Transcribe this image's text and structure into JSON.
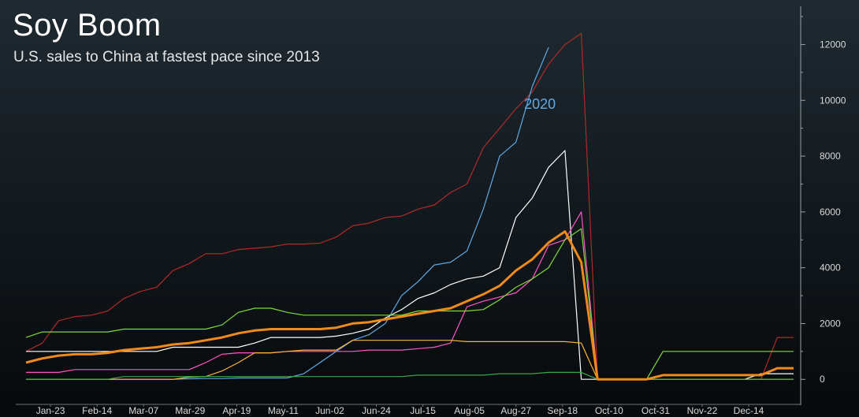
{
  "header": {
    "title": "Soy Boom",
    "subtitle": "U.S. sales to China at fastest pace since 2013"
  },
  "chart_data": {
    "type": "line",
    "title": "Soy Boom",
    "subtitle": "U.S. sales to China at fastest pace since 2013",
    "xlabel": "",
    "ylabel": "",
    "x_ticks": [
      "Jan-23",
      "Feb-14",
      "Mar-07",
      "Mar-29",
      "Apr-19",
      "May-11",
      "Jun-02",
      "Jun-24",
      "Jul-15",
      "Aug-05",
      "Aug-27",
      "Sep-18",
      "Oct-10",
      "Oct-31",
      "Nov-22",
      "Dec-14"
    ],
    "x_range": [
      0,
      47
    ],
    "ylim": [
      -700,
      13200
    ],
    "y_ticks": [
      0,
      2000,
      4000,
      6000,
      8000,
      10000,
      12000
    ],
    "y_axis_side": "right",
    "grid": false,
    "legend": "none",
    "annotations": [
      {
        "text": "2020",
        "x": 30.5,
        "y": 9700,
        "color": "#5ea9e6"
      }
    ],
    "series": [
      {
        "color": "#b02a2a",
        "width": 1.2,
        "x": [
          0,
          1,
          2,
          3,
          4,
          5,
          6,
          7,
          8,
          9,
          10,
          11,
          12,
          13,
          14,
          15,
          16,
          17,
          18,
          19,
          20,
          21,
          22,
          23,
          24,
          25,
          26,
          27,
          28,
          29,
          30,
          31,
          32,
          33,
          34,
          35,
          36,
          37,
          38,
          39,
          40,
          41,
          42,
          43,
          44,
          45,
          46,
          47
        ],
        "y": [
          1000,
          1300,
          2100,
          2250,
          2300,
          2450,
          2900,
          3150,
          3300,
          3900,
          4150,
          4500,
          4500,
          4650,
          4700,
          4750,
          4850,
          4850,
          4880,
          5100,
          5500,
          5600,
          5800,
          5850,
          6100,
          6250,
          6700,
          7000,
          8300,
          9000,
          9700,
          10300,
          11300,
          12000,
          12400,
          0,
          0,
          0,
          0,
          0,
          0,
          0,
          0,
          0,
          0,
          0,
          1500,
          1500
        ]
      },
      {
        "color": "#5ea9e6",
        "width": 1.2,
        "x": [
          0,
          1,
          2,
          3,
          4,
          5,
          6,
          7,
          8,
          9,
          10,
          11,
          12,
          13,
          14,
          15,
          16,
          17,
          18,
          19,
          20,
          21,
          22,
          23,
          24,
          25,
          26,
          27,
          28,
          29,
          30,
          31,
          32
        ],
        "y": [
          0,
          0,
          0,
          0,
          0,
          0,
          0,
          0,
          0,
          0,
          20,
          30,
          30,
          50,
          50,
          50,
          50,
          200,
          600,
          1000,
          1400,
          1600,
          2000,
          3000,
          3500,
          4100,
          4200,
          4600,
          6100,
          8000,
          8500,
          10500,
          11900
        ]
      },
      {
        "color": "#ffffff",
        "width": 1.2,
        "x": [
          0,
          1,
          2,
          3,
          4,
          5,
          6,
          7,
          8,
          9,
          10,
          11,
          12,
          13,
          14,
          15,
          16,
          17,
          18,
          19,
          20,
          21,
          22,
          23,
          24,
          25,
          26,
          27,
          28,
          29,
          30,
          31,
          32,
          33,
          34,
          35,
          36,
          37,
          38,
          39,
          40,
          41,
          42,
          43,
          44,
          45,
          46,
          47
        ],
        "y": [
          1000,
          1000,
          1000,
          1000,
          1000,
          1000,
          1000,
          1000,
          1000,
          1150,
          1150,
          1150,
          1150,
          1150,
          1300,
          1500,
          1500,
          1500,
          1500,
          1550,
          1650,
          1800,
          2200,
          2500,
          2900,
          3100,
          3400,
          3600,
          3700,
          4000,
          5800,
          6500,
          7600,
          8200,
          0,
          0,
          0,
          0,
          0,
          0,
          0,
          0,
          0,
          0,
          0,
          200,
          200,
          200
        ]
      },
      {
        "color": "#ff55c8",
        "width": 1.2,
        "x": [
          0,
          1,
          2,
          3,
          4,
          5,
          6,
          7,
          8,
          9,
          10,
          11,
          12,
          13,
          14,
          15,
          16,
          17,
          18,
          19,
          20,
          21,
          22,
          23,
          24,
          25,
          26,
          27,
          28,
          29,
          30,
          31,
          32,
          33,
          34,
          35,
          36,
          37,
          38,
          39,
          40,
          41,
          42,
          43,
          44,
          45,
          46,
          47
        ],
        "y": [
          250,
          250,
          250,
          350,
          350,
          350,
          350,
          350,
          350,
          350,
          350,
          600,
          900,
          950,
          950,
          950,
          1000,
          1000,
          1000,
          1000,
          1000,
          1050,
          1050,
          1050,
          1100,
          1150,
          1300,
          2600,
          2800,
          2950,
          3100,
          3600,
          4800,
          5000,
          6000,
          0,
          0,
          0,
          0,
          0,
          0,
          0,
          0,
          0,
          0,
          0,
          0,
          0
        ]
      },
      {
        "color": "#7fd93a",
        "width": 1.2,
        "x": [
          0,
          1,
          2,
          3,
          4,
          5,
          6,
          7,
          8,
          9,
          10,
          11,
          12,
          13,
          14,
          15,
          16,
          17,
          18,
          19,
          20,
          21,
          22,
          23,
          24,
          25,
          26,
          27,
          28,
          29,
          30,
          31,
          32,
          33,
          34,
          35,
          36,
          37,
          38,
          39,
          40,
          41,
          42,
          43,
          44,
          45,
          46,
          47
        ],
        "y": [
          1500,
          1700,
          1700,
          1700,
          1700,
          1700,
          1800,
          1800,
          1800,
          1800,
          1800,
          1800,
          1950,
          2400,
          2550,
          2550,
          2400,
          2300,
          2300,
          2300,
          2300,
          2300,
          2300,
          2300,
          2450,
          2450,
          2450,
          2450,
          2500,
          2850,
          3300,
          3600,
          4000,
          5000,
          5400,
          0,
          0,
          0,
          0,
          1000,
          1000,
          1000,
          1000,
          1000,
          1000,
          1000,
          1000,
          1000
        ]
      },
      {
        "color": "#ffb43a",
        "width": 1.2,
        "x": [
          0,
          1,
          2,
          3,
          4,
          5,
          6,
          7,
          8,
          9,
          10,
          11,
          12,
          13,
          14,
          15,
          16,
          17,
          18,
          19,
          20,
          21,
          22,
          23,
          24,
          25,
          26,
          27,
          28,
          29,
          30,
          31,
          32,
          33,
          34,
          35,
          36,
          37,
          38,
          39,
          40,
          41,
          42,
          43,
          44,
          45,
          46,
          47
        ],
        "y": [
          0,
          0,
          0,
          0,
          0,
          0,
          0,
          0,
          0,
          0,
          80,
          100,
          300,
          600,
          950,
          950,
          1000,
          1050,
          1050,
          1050,
          1400,
          1400,
          1400,
          1400,
          1400,
          1400,
          1400,
          1350,
          1350,
          1350,
          1350,
          1350,
          1350,
          1350,
          1300,
          0,
          0,
          0,
          0,
          0,
          0,
          0,
          0,
          0,
          0,
          0,
          0,
          0
        ]
      },
      {
        "color": "#3aa84a",
        "width": 1.2,
        "x": [
          0,
          1,
          2,
          3,
          4,
          5,
          6,
          7,
          8,
          9,
          10,
          11,
          12,
          13,
          14,
          15,
          16,
          17,
          18,
          19,
          20,
          21,
          22,
          23,
          24,
          25,
          26,
          27,
          28,
          29,
          30,
          31,
          32,
          33,
          34,
          35,
          36,
          37,
          38,
          39,
          40,
          41,
          42,
          43,
          44,
          45,
          46,
          47
        ],
        "y": [
          0,
          0,
          0,
          0,
          0,
          0,
          100,
          100,
          100,
          100,
          100,
          100,
          100,
          100,
          100,
          100,
          100,
          100,
          100,
          100,
          100,
          100,
          100,
          100,
          150,
          150,
          150,
          150,
          150,
          200,
          200,
          200,
          250,
          250,
          250,
          0,
          0,
          0,
          0,
          0,
          0,
          0,
          0,
          0,
          0,
          0,
          0,
          0
        ]
      },
      {
        "color": "#f08a1a",
        "width": 3,
        "x": [
          0,
          1,
          2,
          3,
          4,
          5,
          6,
          7,
          8,
          9,
          10,
          11,
          12,
          13,
          14,
          15,
          16,
          17,
          18,
          19,
          20,
          21,
          22,
          23,
          24,
          25,
          26,
          27,
          28,
          29,
          30,
          31,
          32,
          33,
          34,
          35,
          36,
          37,
          38,
          39,
          40,
          41,
          42,
          43,
          44,
          45,
          46,
          47
        ],
        "y": [
          600,
          750,
          850,
          900,
          900,
          950,
          1050,
          1100,
          1150,
          1250,
          1300,
          1400,
          1500,
          1650,
          1750,
          1800,
          1800,
          1800,
          1800,
          1850,
          2000,
          2050,
          2150,
          2250,
          2350,
          2450,
          2550,
          2800,
          3050,
          3350,
          3900,
          4300,
          4900,
          5300,
          4200,
          0,
          0,
          0,
          0,
          150,
          150,
          150,
          150,
          150,
          150,
          150,
          400,
          400
        ]
      }
    ]
  }
}
